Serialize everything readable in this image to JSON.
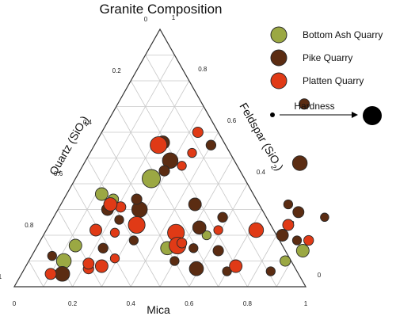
{
  "chart_data": {
    "type": "scatter",
    "subtype": "ternary",
    "title": "Granite Composition",
    "axes": {
      "bottom": {
        "label": "Mica"
      },
      "left": {
        "label_base": "Quartz (SiO",
        "label_sub": "4",
        "label_end": ")"
      },
      "right": {
        "label_base": "Feldspar (SiO",
        "label_sub": "2",
        "label_end": ")"
      }
    },
    "ticks": {
      "bottom": [
        "0",
        "0.2",
        "0.4",
        "0.6",
        "0.8",
        "1"
      ],
      "left": [
        "0",
        "0.2",
        "0.4",
        "0.6",
        "0.8",
        "1"
      ],
      "right": [
        "0",
        "0.2",
        "0.4",
        "0.6",
        "0.8",
        "1"
      ]
    },
    "grid": true,
    "legend_position": "top-right",
    "series": [
      {
        "name": "Bottom Ash Quarry",
        "color": "#9ba843",
        "points": [
          {
            "mica": 0.12,
            "quartz": 0.36,
            "hardness": 0.55
          },
          {
            "mica": 0.26,
            "quartz": 0.42,
            "hardness": 0.95
          },
          {
            "mica": 0.17,
            "quartz": 0.34,
            "hardness": 0.4
          },
          {
            "mica": 0.13,
            "quartz": 0.16,
            "hardness": 0.55
          },
          {
            "mica": 0.12,
            "quartz": 0.1,
            "hardness": 0.7
          },
          {
            "mica": 0.45,
            "quartz": 0.15,
            "hardness": 0.6
          },
          {
            "mica": 0.56,
            "quartz": 0.2,
            "hardness": 0.3
          },
          {
            "mica": 0.92,
            "quartz": 0.14,
            "hardness": 0.55
          },
          {
            "mica": 0.88,
            "quartz": 0.1,
            "hardness": 0.4
          }
        ]
      },
      {
        "name": "Pike Quarry",
        "color": "#5b2c12",
        "points": [
          {
            "mica": 0.23,
            "quartz": 0.56,
            "hardness": 0.6
          },
          {
            "mica": 0.29,
            "quartz": 0.49,
            "hardness": 0.75
          },
          {
            "mica": 0.29,
            "quartz": 0.45,
            "hardness": 0.4
          },
          {
            "mica": 0.4,
            "quartz": 0.55,
            "hardness": 0.35
          },
          {
            "mica": 0.28,
            "quartz": 0.3,
            "hardness": 0.75
          },
          {
            "mica": 0.17,
            "quartz": 0.3,
            "hardness": 0.5
          },
          {
            "mica": 0.25,
            "quartz": 0.34,
            "hardness": 0.4
          },
          {
            "mica": 0.46,
            "quartz": 0.32,
            "hardness": 0.55
          },
          {
            "mica": 0.52,
            "quartz": 0.23,
            "hardness": 0.6
          },
          {
            "mica": 0.58,
            "quartz": 0.27,
            "hardness": 0.35
          },
          {
            "mica": 0.63,
            "quartz": 0.14,
            "hardness": 0.4
          },
          {
            "mica": 0.59,
            "quartz": 0.07,
            "hardness": 0.65
          },
          {
            "mica": 0.74,
            "quartz": 0.48,
            "hardness": 0.7
          },
          {
            "mica": 0.83,
            "quartz": 0.29,
            "hardness": 0.45
          },
          {
            "mica": 0.82,
            "quartz": 0.2,
            "hardness": 0.5
          },
          {
            "mica": 0.93,
            "quartz": 0.27,
            "hardness": 0.25
          },
          {
            "mica": 0.07,
            "quartz": 0.12,
            "hardness": 0.3
          },
          {
            "mica": 0.14,
            "quartz": 0.05,
            "hardness": 0.7
          },
          {
            "mica": 0.23,
            "quartz": 0.15,
            "hardness": 0.35
          },
          {
            "mica": 0.5,
            "quartz": 0.1,
            "hardness": 0.3
          },
          {
            "mica": 0.54,
            "quartz": 0.15,
            "hardness": 0.3
          },
          {
            "mica": 0.78,
            "quartz": 0.32,
            "hardness": 0.3
          },
          {
            "mica": 0.7,
            "quartz": 0.06,
            "hardness": 0.3
          },
          {
            "mica": 0.85,
            "quartz": 0.06,
            "hardness": 0.3
          },
          {
            "mica": 0.88,
            "quartz": 0.18,
            "hardness": 0.3
          },
          {
            "mica": 0.32,
            "quartz": 0.18,
            "hardness": 0.3
          },
          {
            "mica": 0.23,
            "quartz": 0.26,
            "hardness": 0.3
          },
          {
            "mica": 0.64,
            "quartz": 0.71,
            "hardness": 0.4
          }
        ]
      },
      {
        "name": "Platten Quarry",
        "color": "#e03a16",
        "points": [
          {
            "mica": 0.22,
            "quartz": 0.55,
            "hardness": 0.85
          },
          {
            "mica": 0.33,
            "quartz": 0.6,
            "hardness": 0.4
          },
          {
            "mica": 0.34,
            "quartz": 0.47,
            "hardness": 0.3
          },
          {
            "mica": 0.35,
            "quartz": 0.52,
            "hardness": 0.3
          },
          {
            "mica": 0.21,
            "quartz": 0.31,
            "hardness": 0.4
          },
          {
            "mica": 0.17,
            "quartz": 0.32,
            "hardness": 0.6
          },
          {
            "mica": 0.3,
            "quartz": 0.24,
            "hardness": 0.85
          },
          {
            "mica": 0.45,
            "quartz": 0.21,
            "hardness": 0.85
          },
          {
            "mica": 0.48,
            "quartz": 0.16,
            "hardness": 0.85
          },
          {
            "mica": 0.17,
            "quartz": 0.22,
            "hardness": 0.5
          },
          {
            "mica": 0.24,
            "quartz": 0.21,
            "hardness": 0.3
          },
          {
            "mica": 0.1,
            "quartz": 0.05,
            "hardness": 0.45
          },
          {
            "mica": 0.22,
            "quartz": 0.07,
            "hardness": 0.4
          },
          {
            "mica": 0.26,
            "quartz": 0.08,
            "hardness": 0.55
          },
          {
            "mica": 0.21,
            "quartz": 0.09,
            "hardness": 0.45
          },
          {
            "mica": 0.29,
            "quartz": 0.11,
            "hardness": 0.3
          },
          {
            "mica": 0.59,
            "quartz": 0.22,
            "hardness": 0.3
          },
          {
            "mica": 0.72,
            "quartz": 0.22,
            "hardness": 0.7
          },
          {
            "mica": 0.72,
            "quartz": 0.08,
            "hardness": 0.55
          },
          {
            "mica": 0.82,
            "quartz": 0.24,
            "hardness": 0.45
          },
          {
            "mica": 0.92,
            "quartz": 0.18,
            "hardness": 0.35
          },
          {
            "mica": 0.49,
            "quartz": 0.17,
            "hardness": 0.35
          }
        ]
      }
    ],
    "size_legend": {
      "label": "Hardness"
    }
  }
}
